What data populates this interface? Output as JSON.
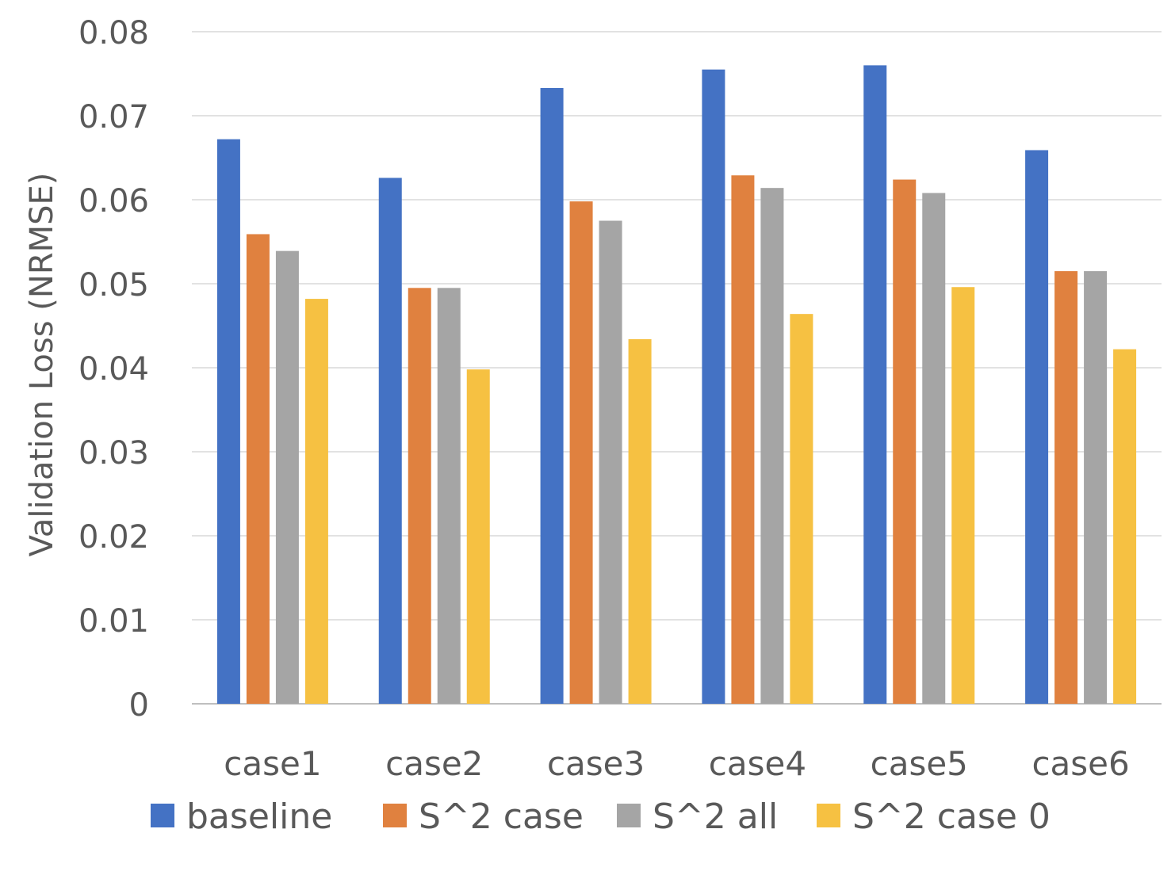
{
  "chart_data": {
    "type": "bar",
    "title": "",
    "xlabel": "",
    "ylabel": "Validation Loss (NRMSE)",
    "ylim": [
      0,
      0.08
    ],
    "yticks": [
      "0",
      "0.01",
      "0.02",
      "0.03",
      "0.04",
      "0.05",
      "0.06",
      "0.07",
      "0.08"
    ],
    "grid": true,
    "legend_position": "bottom",
    "categories": [
      "case1",
      "case2",
      "case3",
      "case4",
      "case5",
      "case6"
    ],
    "series": [
      {
        "name": "baseline",
        "color": "#4472C4",
        "values": [
          0.0672,
          0.0626,
          0.0733,
          0.0755,
          0.076,
          0.0659
        ]
      },
      {
        "name": "S^2 case",
        "color": "#E0813F",
        "values": [
          0.0559,
          0.0495,
          0.0598,
          0.0629,
          0.0624,
          0.0515
        ]
      },
      {
        "name": "S^2 all",
        "color": "#A5A5A5",
        "values": [
          0.0539,
          0.0495,
          0.0575,
          0.0614,
          0.0608,
          0.0515
        ]
      },
      {
        "name": "S^2 case 0",
        "color": "#F6C142",
        "values": [
          0.0482,
          0.0398,
          0.0434,
          0.0464,
          0.0496,
          0.0422
        ]
      }
    ]
  }
}
